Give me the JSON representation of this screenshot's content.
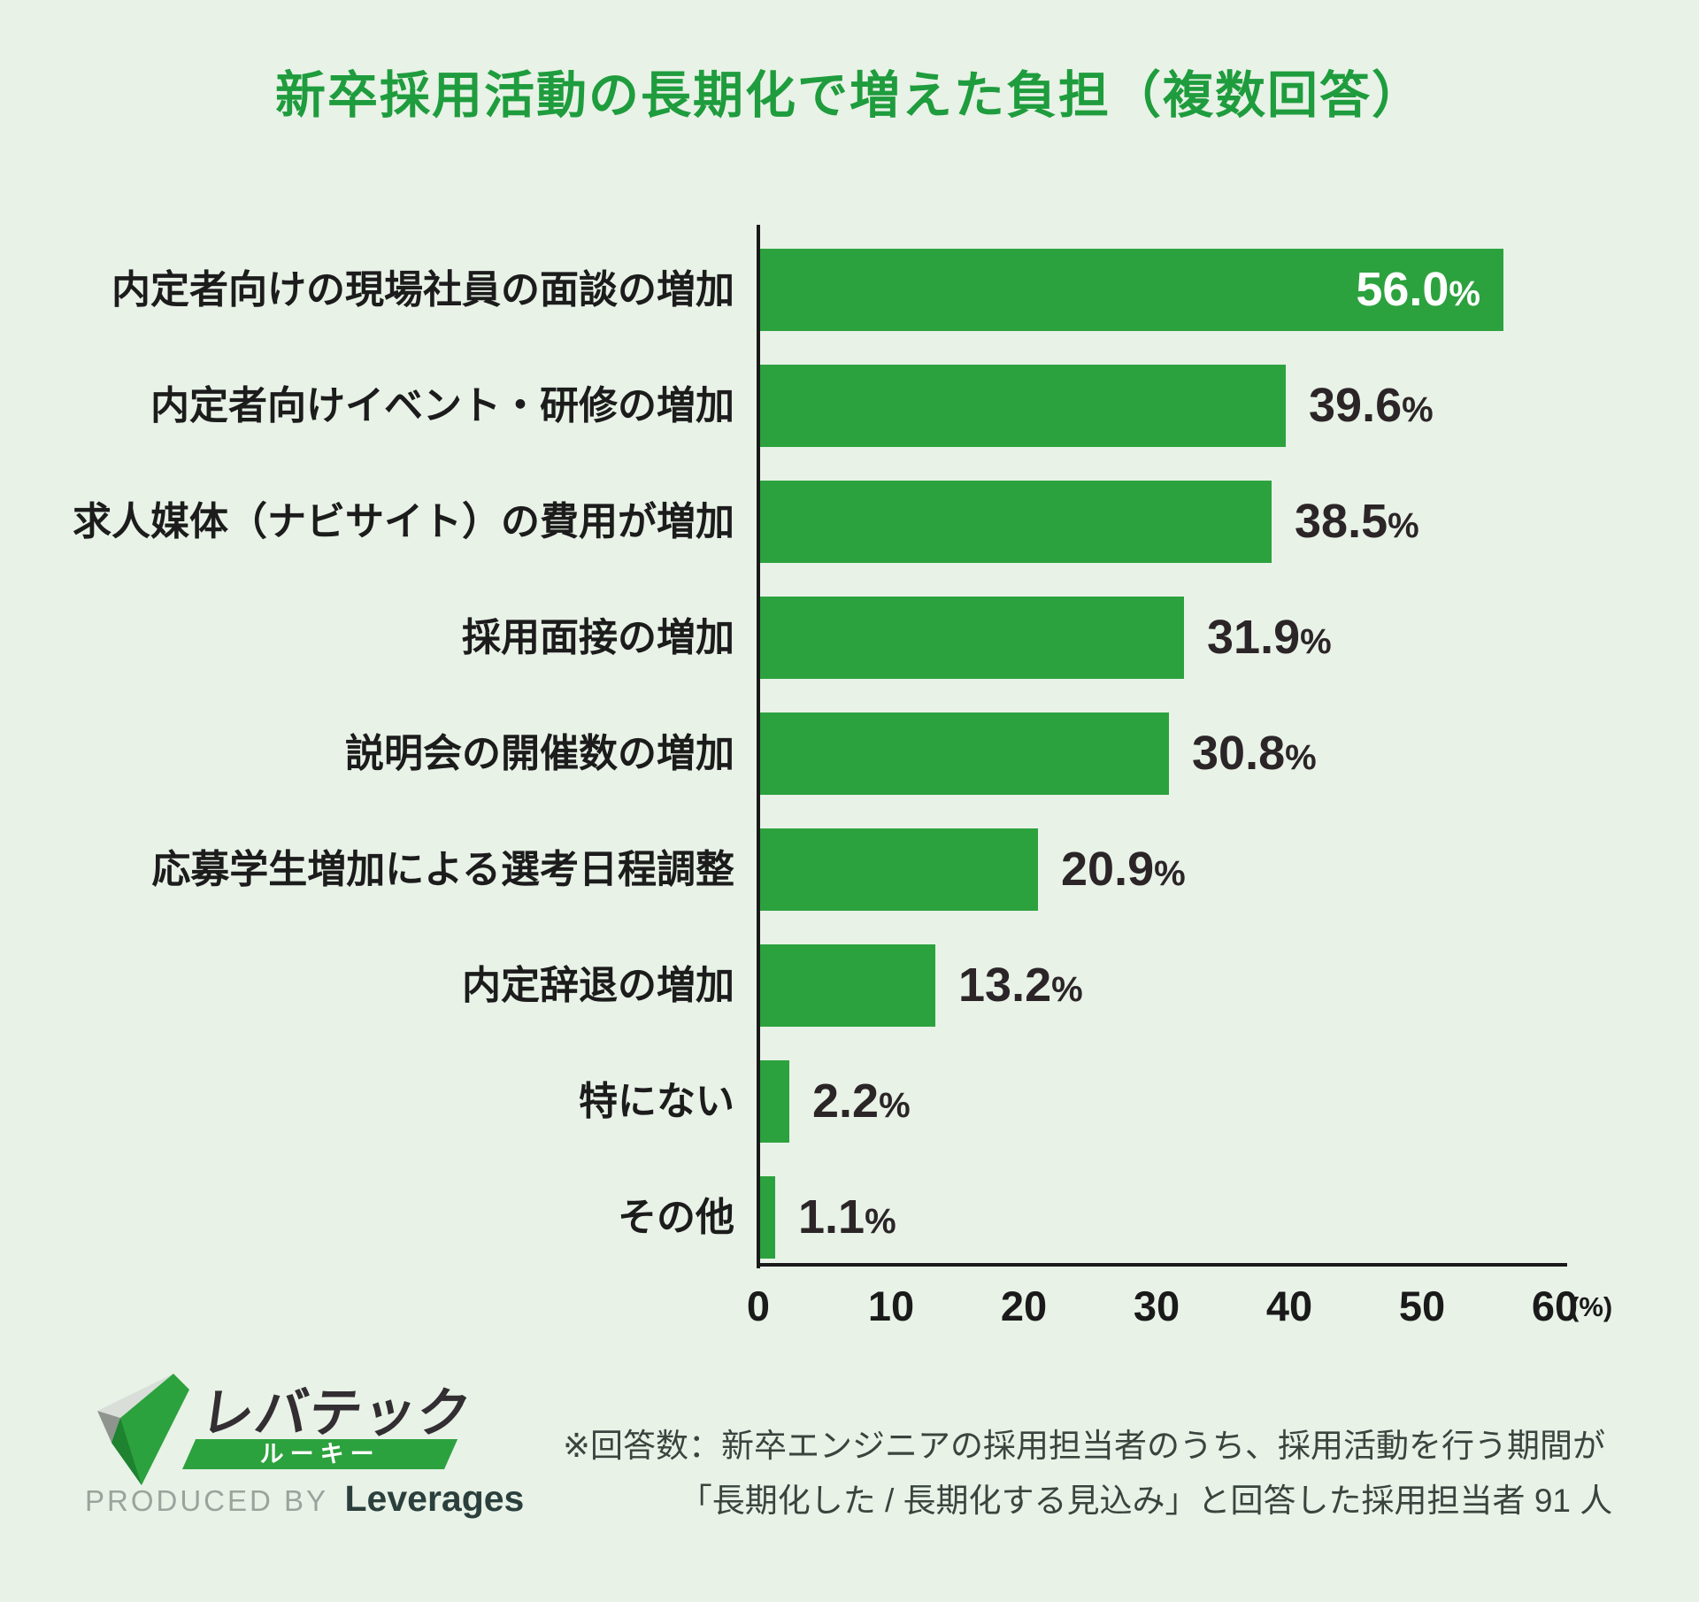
{
  "title": "新卒採用活動の長期化で増えた負担（複数回答）",
  "chart_data": {
    "type": "bar",
    "orientation": "horizontal",
    "title": "新卒採用活動の長期化で増えた負担（複数回答）",
    "categories": [
      "内定者向けの現場社員の面談の増加",
      "内定者向けイベント・研修の増加",
      "求人媒体（ナビサイト）の費用が増加",
      "採用面接の増加",
      "説明会の開催数の増加",
      "応募学生増加による選考日程調整",
      "内定辞退の増加",
      "特にない",
      "その他"
    ],
    "values": [
      56.0,
      39.6,
      38.5,
      31.9,
      30.8,
      20.9,
      13.2,
      2.2,
      1.1
    ],
    "value_labels": [
      "56.0%",
      "39.6%",
      "38.5%",
      "31.9%",
      "30.8%",
      "20.9%",
      "13.2%",
      "2.2%",
      "1.1%"
    ],
    "x_ticks": [
      0,
      10,
      20,
      30,
      40,
      50,
      60
    ],
    "axis_unit": "(%)",
    "xlim": [
      0,
      60
    ],
    "grid": false,
    "legend": "none",
    "bar_color": "#2ca23e"
  },
  "colors": {
    "background": "#e8f2e7",
    "bar": "#2ca23e",
    "title": "#1f9c3d",
    "axis": "#1a1a1a",
    "value_text": "#2b2528",
    "value_text_inside": "#ffffff",
    "band": "#2ca23e"
  },
  "footer": {
    "logo": {
      "brand": "レバテック",
      "sub_brand": "ルーキー",
      "produced_by": "PRODUCED BY",
      "company": "Leverages"
    },
    "note_line1": "※回答数：新卒エンジニアの採用担当者のうち、採用活動を行う期間が",
    "note_line2": "「長期化した / 長期化する見込み」と回答した採用担当者 91 人"
  }
}
